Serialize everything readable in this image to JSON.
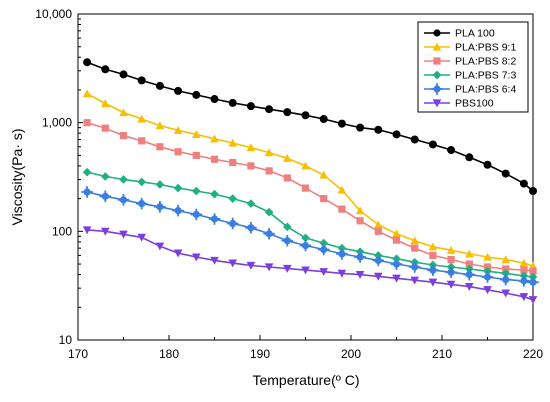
{
  "chart_data": {
    "type": "line",
    "xlabel": "Temperature(º C)",
    "ylabel": "Viscosity(Pa· s)",
    "xlim": [
      170,
      220
    ],
    "ylim": [
      10,
      10000
    ],
    "yscale": "log",
    "x_ticks": [
      "170",
      "180",
      "190",
      "200",
      "210",
      "220"
    ],
    "y_ticks": [
      "10",
      "100",
      "1,000",
      "10,000"
    ],
    "grid": false,
    "legend_position": "top-right",
    "series": [
      {
        "name": "PLA 100",
        "color": "#000000",
        "marker": "circle",
        "points": [
          [
            171,
            3600
          ],
          [
            173,
            3100
          ],
          [
            175,
            2780
          ],
          [
            177,
            2450
          ],
          [
            179,
            2180
          ],
          [
            181,
            1960
          ],
          [
            183,
            1800
          ],
          [
            185,
            1650
          ],
          [
            187,
            1520
          ],
          [
            189,
            1420
          ],
          [
            191,
            1330
          ],
          [
            193,
            1250
          ],
          [
            195,
            1170
          ],
          [
            197,
            1080
          ],
          [
            199,
            980
          ],
          [
            201,
            900
          ],
          [
            203,
            860
          ],
          [
            205,
            780
          ],
          [
            207,
            700
          ],
          [
            209,
            630
          ],
          [
            211,
            560
          ],
          [
            213,
            480
          ],
          [
            215,
            410
          ],
          [
            217,
            340
          ],
          [
            219,
            275
          ],
          [
            220,
            235
          ]
        ]
      },
      {
        "name": "PLA:PBS 9:1",
        "color": "#f5c000",
        "marker": "triangle-up",
        "points": [
          [
            171,
            1850
          ],
          [
            173,
            1500
          ],
          [
            175,
            1240
          ],
          [
            177,
            1080
          ],
          [
            179,
            940
          ],
          [
            181,
            850
          ],
          [
            183,
            780
          ],
          [
            185,
            710
          ],
          [
            187,
            650
          ],
          [
            189,
            590
          ],
          [
            191,
            530
          ],
          [
            193,
            470
          ],
          [
            195,
            400
          ],
          [
            197,
            330
          ],
          [
            199,
            240
          ],
          [
            201,
            155
          ],
          [
            203,
            115
          ],
          [
            205,
            95
          ],
          [
            207,
            82
          ],
          [
            209,
            72
          ],
          [
            211,
            67
          ],
          [
            213,
            62
          ],
          [
            215,
            58
          ],
          [
            217,
            55
          ],
          [
            219,
            51
          ],
          [
            220,
            48
          ]
        ]
      },
      {
        "name": "PLA:PBS 8:2",
        "color": "#f08080",
        "marker": "square",
        "points": [
          [
            171,
            1000
          ],
          [
            173,
            890
          ],
          [
            175,
            760
          ],
          [
            177,
            680
          ],
          [
            179,
            600
          ],
          [
            181,
            540
          ],
          [
            183,
            500
          ],
          [
            185,
            460
          ],
          [
            187,
            430
          ],
          [
            189,
            400
          ],
          [
            191,
            360
          ],
          [
            193,
            310
          ],
          [
            195,
            250
          ],
          [
            197,
            200
          ],
          [
            199,
            160
          ],
          [
            201,
            125
          ],
          [
            203,
            100
          ],
          [
            205,
            83
          ],
          [
            207,
            70
          ],
          [
            209,
            60
          ],
          [
            211,
            55
          ],
          [
            213,
            50
          ],
          [
            215,
            47
          ],
          [
            217,
            45
          ],
          [
            219,
            44
          ],
          [
            220,
            43
          ]
        ]
      },
      {
        "name": "PLA:PBS 7:3",
        "color": "#20b080",
        "marker": "diamond",
        "points": [
          [
            171,
            350
          ],
          [
            173,
            320
          ],
          [
            175,
            300
          ],
          [
            177,
            285
          ],
          [
            179,
            270
          ],
          [
            181,
            250
          ],
          [
            183,
            235
          ],
          [
            185,
            220
          ],
          [
            187,
            200
          ],
          [
            189,
            180
          ],
          [
            191,
            150
          ],
          [
            193,
            110
          ],
          [
            195,
            87
          ],
          [
            197,
            78
          ],
          [
            199,
            70
          ],
          [
            201,
            65
          ],
          [
            203,
            60
          ],
          [
            205,
            56
          ],
          [
            207,
            52
          ],
          [
            209,
            49
          ],
          [
            211,
            47
          ],
          [
            213,
            45
          ],
          [
            215,
            43
          ],
          [
            217,
            41
          ],
          [
            219,
            39
          ],
          [
            220,
            38
          ]
        ]
      },
      {
        "name": "PLA:PBS 6:4",
        "color": "#3a7fe0",
        "marker": "plus-circle",
        "points": [
          [
            171,
            230
          ],
          [
            173,
            210
          ],
          [
            175,
            195
          ],
          [
            177,
            180
          ],
          [
            179,
            168
          ],
          [
            181,
            155
          ],
          [
            183,
            143
          ],
          [
            185,
            130
          ],
          [
            187,
            118
          ],
          [
            189,
            108
          ],
          [
            191,
            95
          ],
          [
            193,
            82
          ],
          [
            195,
            74
          ],
          [
            197,
            68
          ],
          [
            199,
            62
          ],
          [
            201,
            58
          ],
          [
            203,
            54
          ],
          [
            205,
            50
          ],
          [
            207,
            47
          ],
          [
            209,
            44
          ],
          [
            211,
            42
          ],
          [
            213,
            40
          ],
          [
            215,
            38
          ],
          [
            217,
            36
          ],
          [
            219,
            35
          ],
          [
            220,
            34
          ]
        ]
      },
      {
        "name": "PBS100",
        "color": "#7b3fe0",
        "marker": "triangle-down",
        "points": [
          [
            171,
            103
          ],
          [
            173,
            100
          ],
          [
            175,
            94
          ],
          [
            177,
            88
          ],
          [
            179,
            73
          ],
          [
            181,
            63
          ],
          [
            183,
            58
          ],
          [
            185,
            54
          ],
          [
            187,
            51
          ],
          [
            189,
            48.5
          ],
          [
            191,
            47
          ],
          [
            193,
            45.5
          ],
          [
            195,
            44
          ],
          [
            197,
            42.5
          ],
          [
            199,
            41
          ],
          [
            201,
            40
          ],
          [
            203,
            38.5
          ],
          [
            205,
            37
          ],
          [
            207,
            35.5
          ],
          [
            209,
            34
          ],
          [
            211,
            32.5
          ],
          [
            213,
            31
          ],
          [
            215,
            29
          ],
          [
            217,
            27
          ],
          [
            219,
            25
          ],
          [
            220,
            23.5
          ]
        ]
      }
    ]
  }
}
